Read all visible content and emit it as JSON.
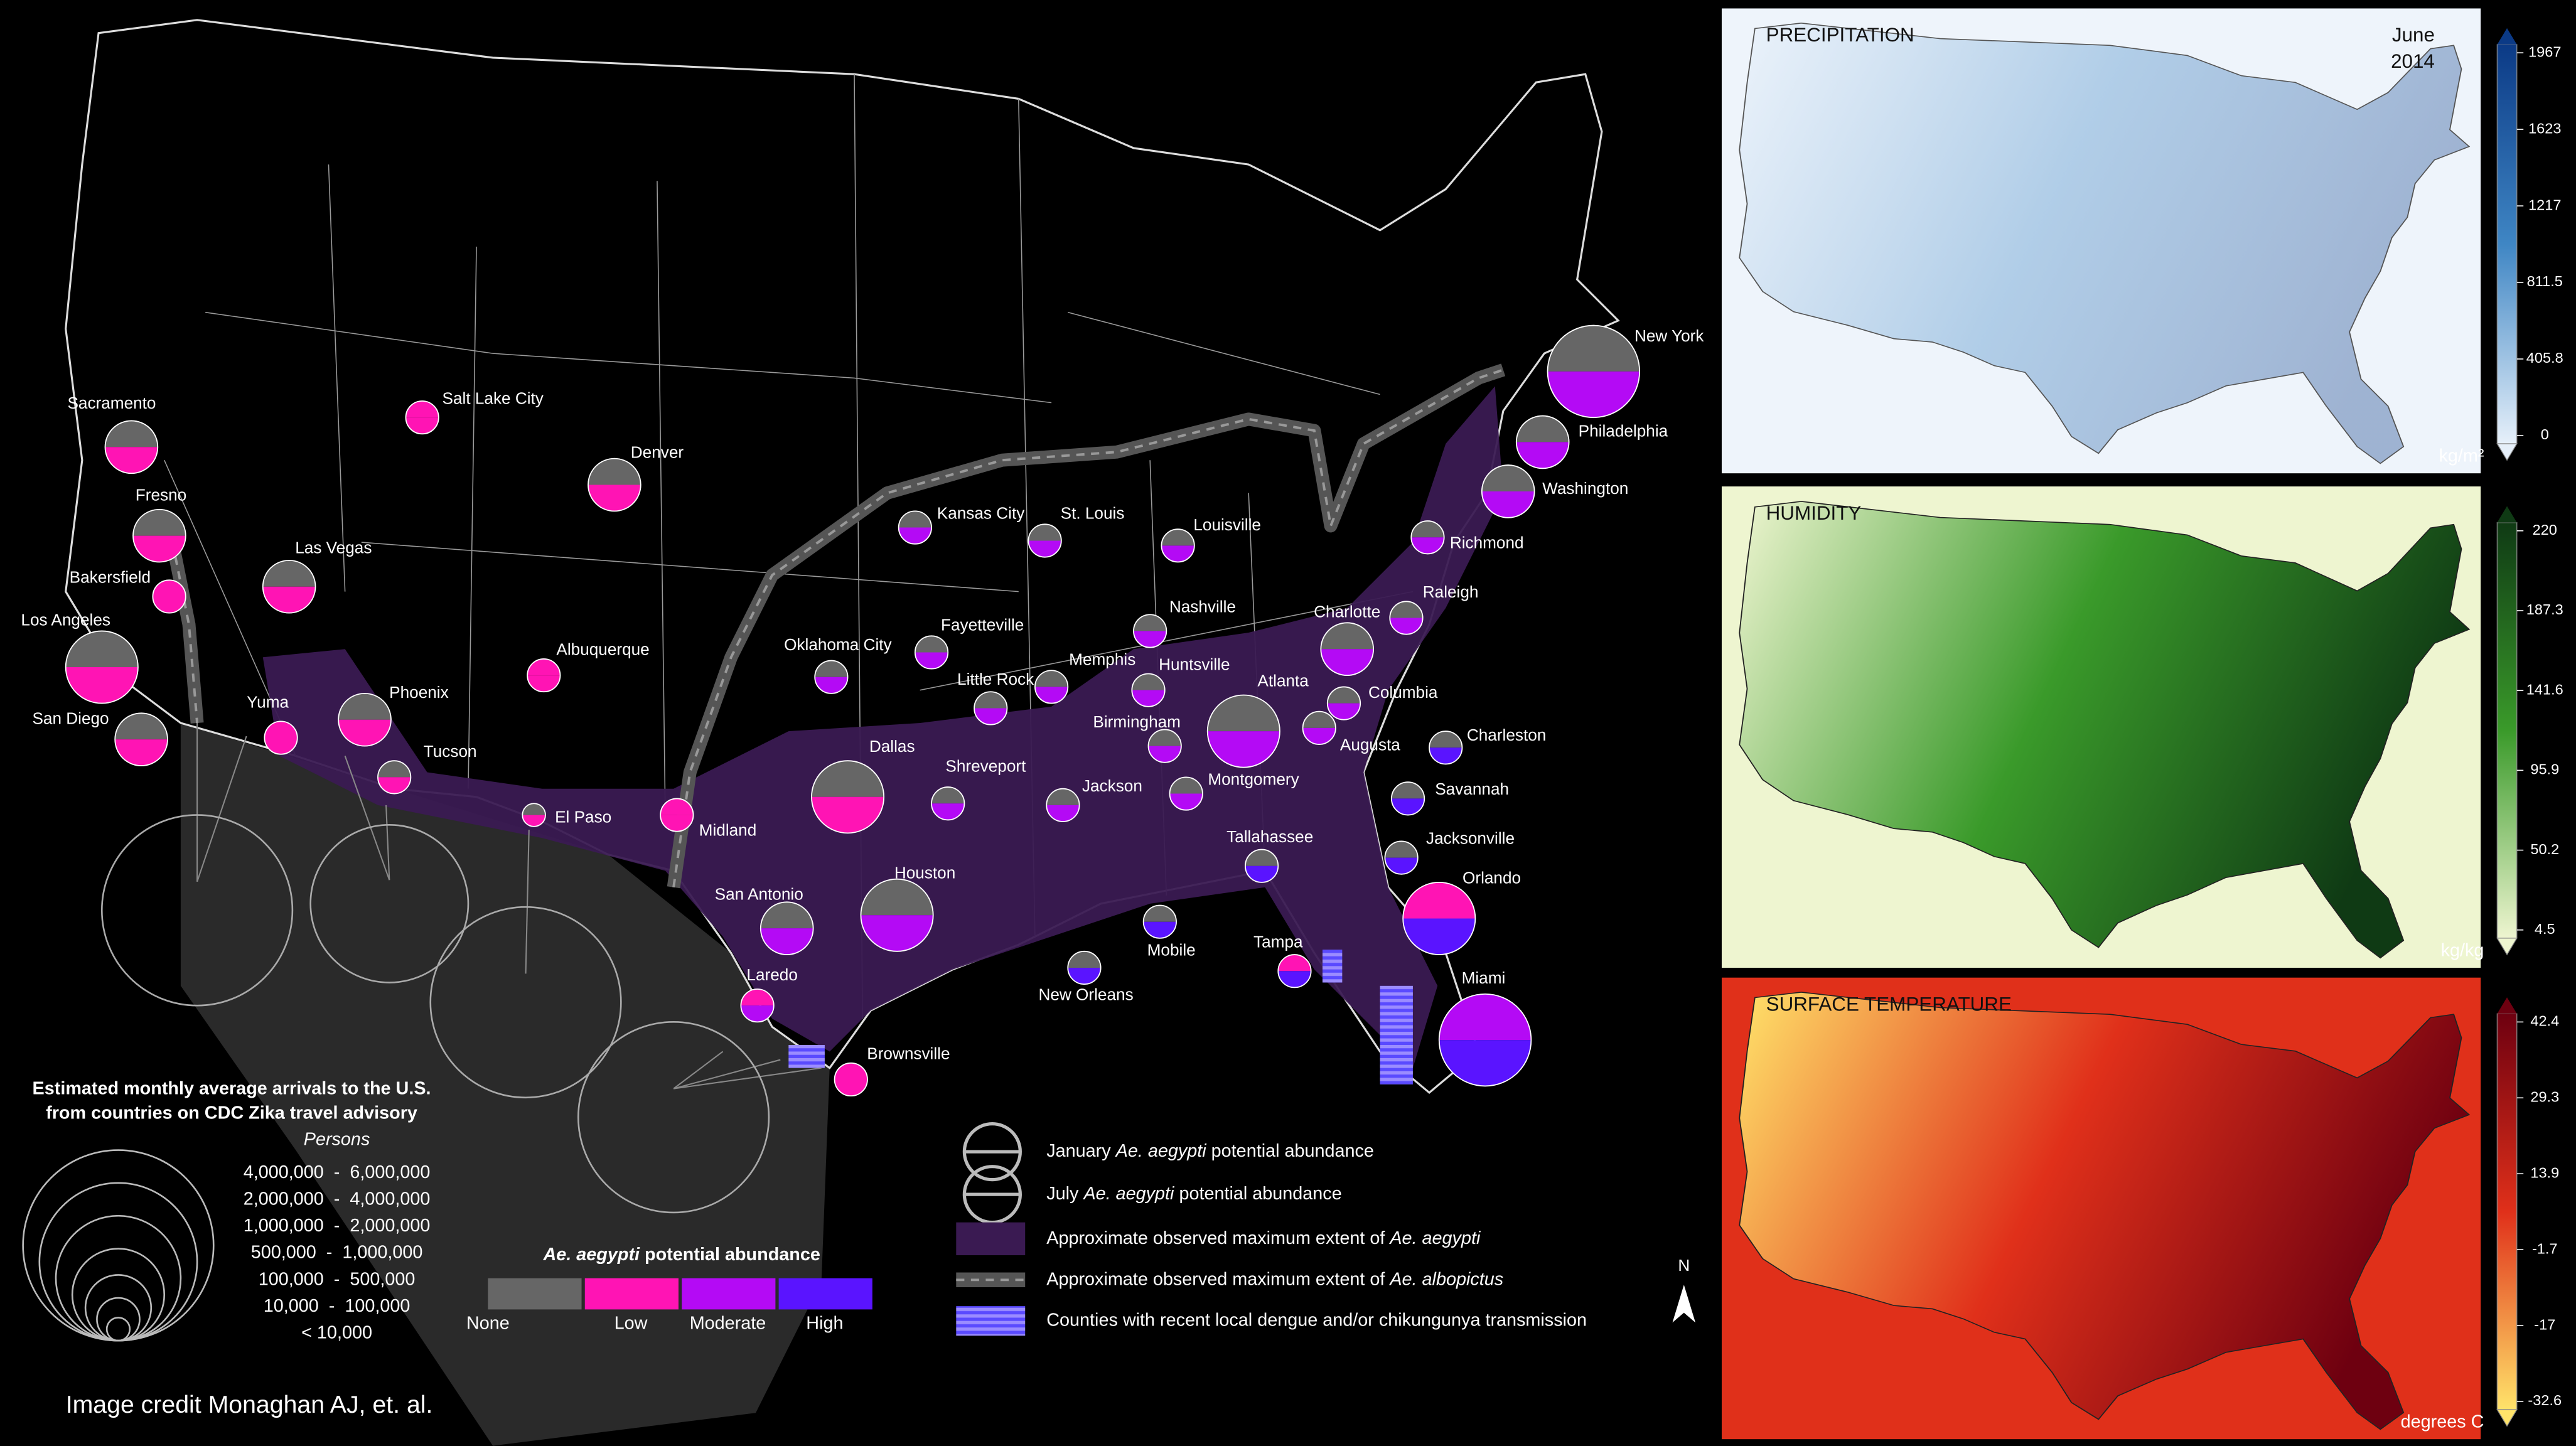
{
  "map": {
    "cities": [
      {
        "name": "Sacramento",
        "jan": 0,
        "jul": 1,
        "size": 4
      },
      {
        "name": "Fresno",
        "jan": 0,
        "jul": 1,
        "size": 4
      },
      {
        "name": "Bakersfield",
        "jan": 1,
        "jul": 1,
        "size": 5
      },
      {
        "name": "Los Angeles",
        "jan": 0,
        "jul": 1,
        "size": 3
      },
      {
        "name": "San Diego",
        "jan": 0,
        "jul": 1,
        "size": 4
      },
      {
        "name": "Yuma",
        "jan": 1,
        "jul": 1,
        "size": 5
      },
      {
        "name": "Phoenix",
        "jan": 0,
        "jul": 1,
        "size": 4
      },
      {
        "name": "Tucson",
        "jan": 0,
        "jul": 1,
        "size": 5
      },
      {
        "name": "Las Vegas",
        "jan": 0,
        "jul": 1,
        "size": 4
      },
      {
        "name": "Salt Lake City",
        "jan": 1,
        "jul": 1,
        "size": 5
      },
      {
        "name": "Denver",
        "jan": 0,
        "jul": 1,
        "size": 4
      },
      {
        "name": "Albuquerque",
        "jan": 1,
        "jul": 1,
        "size": 5
      },
      {
        "name": "El Paso",
        "jan": 0,
        "jul": 1,
        "size": 6
      },
      {
        "name": "Midland",
        "jan": 1,
        "jul": 1,
        "size": 5
      },
      {
        "name": "Oklahoma City",
        "jan": 0,
        "jul": 2,
        "size": 5
      },
      {
        "name": "Dallas",
        "jan": 0,
        "jul": 1,
        "size": 3
      },
      {
        "name": "San Antonio",
        "jan": 0,
        "jul": 2,
        "size": 4
      },
      {
        "name": "Laredo",
        "jan": 1,
        "jul": 2,
        "size": 5
      },
      {
        "name": "Brownsville",
        "jan": 1,
        "jul": 1,
        "size": 5
      },
      {
        "name": "Houston",
        "jan": 0,
        "jul": 2,
        "size": 3
      },
      {
        "name": "Shreveport",
        "jan": 0,
        "jul": 2,
        "size": 5
      },
      {
        "name": "Fayetteville",
        "jan": 0,
        "jul": 2,
        "size": 5
      },
      {
        "name": "Kansas City",
        "jan": 0,
        "jul": 2,
        "size": 5
      },
      {
        "name": "St. Louis",
        "jan": 0,
        "jul": 2,
        "size": 5
      },
      {
        "name": "Louisville",
        "jan": 0,
        "jul": 2,
        "size": 5
      },
      {
        "name": "Little Rock",
        "jan": 0,
        "jul": 2,
        "size": 5
      },
      {
        "name": "Memphis",
        "jan": 0,
        "jul": 2,
        "size": 5
      },
      {
        "name": "Nashville",
        "jan": 0,
        "jul": 2,
        "size": 5
      },
      {
        "name": "Huntsville",
        "jan": 0,
        "jul": 2,
        "size": 5
      },
      {
        "name": "Birmingham",
        "jan": 0,
        "jul": 2,
        "size": 5
      },
      {
        "name": "Atlanta",
        "jan": 0,
        "jul": 2,
        "size": 3
      },
      {
        "name": "Jackson",
        "jan": 0,
        "jul": 2,
        "size": 5
      },
      {
        "name": "Montgomery",
        "jan": 0,
        "jul": 2,
        "size": 5
      },
      {
        "name": "Charlotte",
        "jan": 0,
        "jul": 2,
        "size": 4
      },
      {
        "name": "Raleigh",
        "jan": 0,
        "jul": 2,
        "size": 5
      },
      {
        "name": "Columbia",
        "jan": 0,
        "jul": 2,
        "size": 5
      },
      {
        "name": "Augusta",
        "jan": 0,
        "jul": 2,
        "size": 5
      },
      {
        "name": "Charleston",
        "jan": 0,
        "jul": 3,
        "size": 5
      },
      {
        "name": "Savannah",
        "jan": 0,
        "jul": 3,
        "size": 5
      },
      {
        "name": "Jacksonville",
        "jan": 0,
        "jul": 3,
        "size": 5
      },
      {
        "name": "Tallahassee",
        "jan": 0,
        "jul": 3,
        "size": 5
      },
      {
        "name": "Orlando",
        "jan": 1,
        "jul": 3,
        "size": 3
      },
      {
        "name": "Tampa",
        "jan": 1,
        "jul": 3,
        "size": 5
      },
      {
        "name": "Miami",
        "jan": 2,
        "jul": 3,
        "size": 2
      },
      {
        "name": "Mobile",
        "jan": 0,
        "jul": 3,
        "size": 5
      },
      {
        "name": "New Orleans",
        "jan": 0,
        "jul": 3,
        "size": 5
      },
      {
        "name": "Richmond",
        "jan": 0,
        "jul": 2,
        "size": 5
      },
      {
        "name": "Washington",
        "jan": 0,
        "jul": 2,
        "size": 4
      },
      {
        "name": "Philadelphia",
        "jan": 0,
        "jul": 2,
        "size": 4
      },
      {
        "name": "New York",
        "jan": 0,
        "jul": 2,
        "size": 2
      }
    ],
    "border_arrivals": [
      0,
      1,
      0,
      0
    ]
  },
  "legend_arrivals": {
    "title": [
      "Estimated monthly average arrivals to the U.S.",
      "from countries on CDC Zika travel advisory"
    ],
    "subtitle": "Persons",
    "classes": [
      "4,000,000  -  6,000,000",
      "2,000,000  -  4,000,000",
      "1,000,000  -  2,000,000",
      "500,000  -  1,000,000",
      "100,000  -  500,000",
      "10,000  -  100,000",
      "< 10,000"
    ]
  },
  "legend_abundance": {
    "title_italic": "Ae. aegypti",
    "title_rest": "potential abundance",
    "levels": [
      {
        "label": "None",
        "color": "#666666"
      },
      {
        "label": "Low",
        "color": "#ff14b4"
      },
      {
        "label": "Moderate",
        "color": "#b40af5"
      },
      {
        "label": "High",
        "color": "#5a14ff"
      }
    ]
  },
  "legend_symbols": [
    {
      "parts": [
        {
          "text": "January",
          "italic": false
        },
        {
          "text": "Ae. aegypti",
          "italic": true
        },
        {
          "text": "potential abundance",
          "italic": false
        }
      ]
    },
    {
      "parts": [
        {
          "text": "July",
          "italic": false
        },
        {
          "text": "Ae. aegypti",
          "italic": true
        },
        {
          "text": "potential abundance",
          "italic": false
        }
      ]
    },
    {
      "parts": [
        {
          "text": "Approximate observed maximum extent of",
          "italic": false
        },
        {
          "text": "Ae. aegypti",
          "italic": true
        }
      ]
    },
    {
      "parts": [
        {
          "text": "Approximate observed maximum extent of",
          "italic": false
        },
        {
          "text": "Ae. albopictus",
          "italic": true
        }
      ]
    },
    {
      "parts": [
        {
          "text": "Counties with recent local dengue and/or chikungunya transmission",
          "italic": false
        }
      ]
    }
  ],
  "north": "N",
  "credit": "Image credit Monaghan AJ, et. al.",
  "panels": [
    {
      "title": "PRECIPITATION",
      "date": [
        "June",
        "2014"
      ],
      "unit": "kg/m²",
      "ticks": [
        1967,
        1623,
        1217,
        811.5,
        405.8,
        0
      ],
      "colors": [
        "#0b3a86",
        "#3f86c4",
        "#e6f0fa"
      ]
    },
    {
      "title": "HUMIDITY",
      "unit": "kg/kg",
      "ticks": [
        220,
        187.3,
        141.6,
        95.9,
        50.2,
        4.5
      ],
      "colors": [
        "#0f3a14",
        "#3a9a2a",
        "#eef5d0"
      ]
    },
    {
      "title": "SURFACE TEMPERATURE",
      "unit": "degrees C",
      "ticks": [
        42.4,
        29.3,
        13.9,
        -1.7,
        -17,
        -32.6
      ],
      "colors": [
        "#6e0010",
        "#e0301a",
        "#ffe36a"
      ]
    }
  ]
}
